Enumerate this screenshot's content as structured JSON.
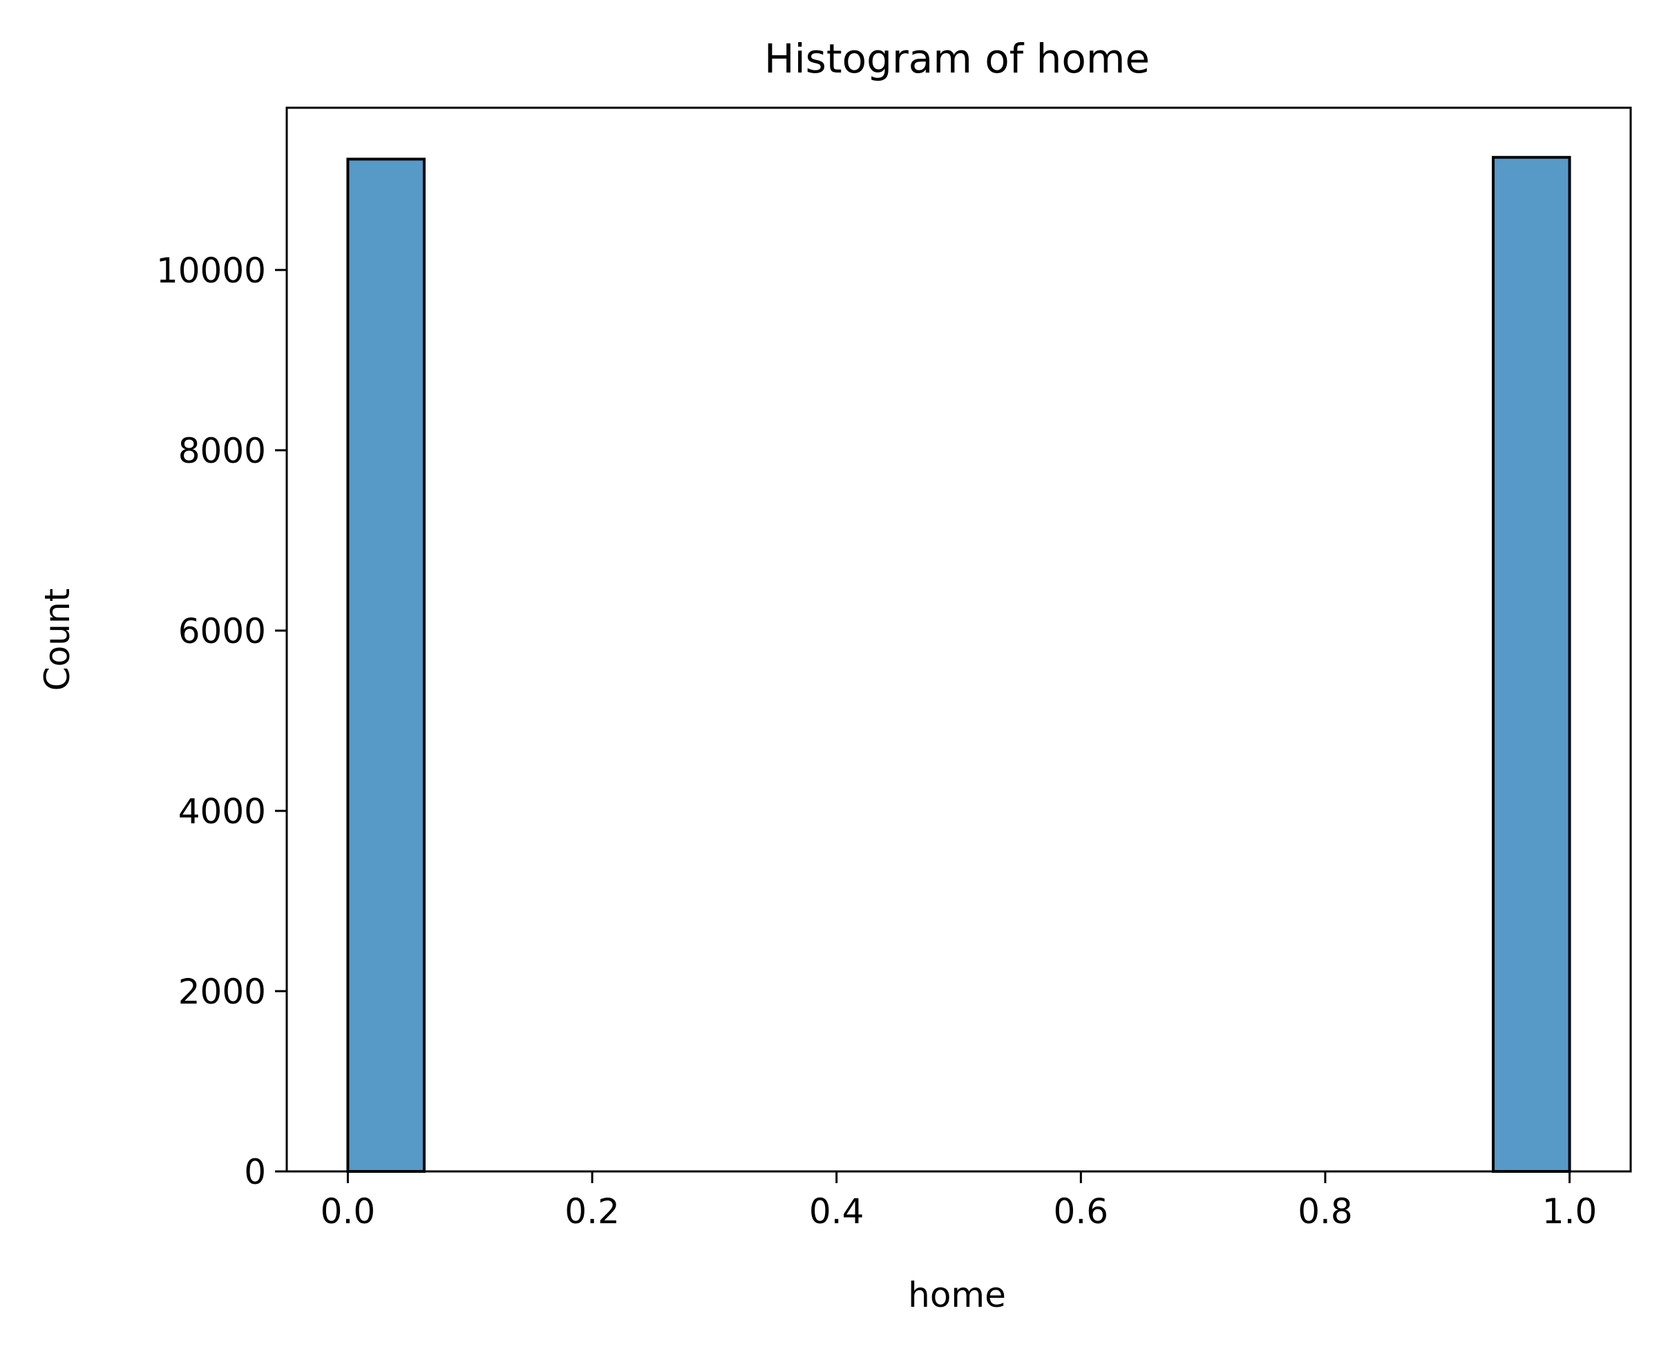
{
  "chart_data": {
    "type": "bar",
    "title": "Histogram of home",
    "xlabel": "home",
    "ylabel": "Count",
    "x_ticks": [
      "0.0",
      "0.2",
      "0.4",
      "0.6",
      "0.8",
      "1.0"
    ],
    "y_ticks": [
      "0",
      "2000",
      "4000",
      "6000",
      "8000",
      "10000"
    ],
    "xlim": [
      -0.05,
      1.05
    ],
    "ylim": [
      0,
      11800
    ],
    "bins": [
      {
        "x_start": 0.0,
        "x_end": 0.0625,
        "count": 11230
      },
      {
        "x_start": 0.9375,
        "x_end": 1.0,
        "count": 11250
      }
    ],
    "grid": false,
    "bar_color": "#5799c7",
    "edge_color": "#000000"
  }
}
